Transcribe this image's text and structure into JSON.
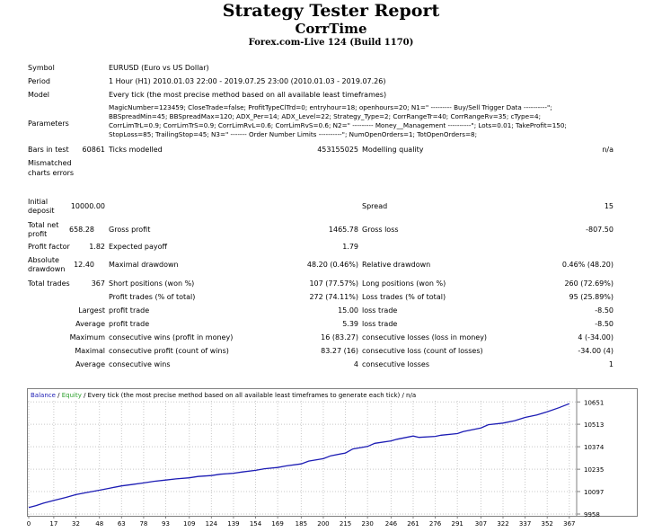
{
  "header": {
    "title": "Strategy Tester Report",
    "ea_name": "CorrTime",
    "server_build": "Forex.com-Live 124 (Build 1170)"
  },
  "settings": {
    "symbol_label": "Symbol",
    "symbol_value": "EURUSD (Euro vs US Dollar)",
    "period_label": "Period",
    "period_value": "1 Hour (H1) 2010.01.03 22:00 - 2019.07.25 23:00 (2010.01.03 - 2019.07.26)",
    "model_label": "Model",
    "model_value": "Every tick (the most precise method based on all available least timeframes)",
    "parameters_label": "Parameters",
    "parameters_lines": [
      "MagicNumber=123459; CloseTrade=false; ProfitTypeClTrd=0; entryhour=18; openhours=20; N1=\" --------- Buy/Sell Trigger Data ----------\";",
      "BBSpreadMin=45; BBSpreadMax=120; ADX_Per=14; ADX_Level=22; Strategy_Type=2; CorrRangeTr=40; CorrRangeRv=35; cType=4;",
      "CorrLimTrL=0.9; CorrLimTrS=0.9; CorrLimRvL=0.6; CorrLimRvS=0.6; N2=\" --------- Money__Management ----------\"; Lots=0.01; TakeProfit=150;",
      "StopLoss=85; TrailingStop=45; N3=\" ------- Order Number Limits ----------\"; NumOpenOrders=1; TotOpenOrders=8;"
    ]
  },
  "results": {
    "bars_in_test_label": "Bars in test",
    "bars_in_test": "60861",
    "ticks_modelled_label": "Ticks modelled",
    "ticks_modelled": "453155025",
    "modelling_quality_label": "Modelling quality",
    "modelling_quality": "n/a",
    "mismatched_label": "Mismatched charts errors",
    "initial_deposit_label": "Initial deposit",
    "initial_deposit": "10000.00",
    "spread_label": "Spread",
    "spread": "15",
    "total_net_profit_label": "Total net profit",
    "total_net_profit": "658.28",
    "gross_profit_label": "Gross profit",
    "gross_profit": "1465.78",
    "gross_loss_label": "Gross loss",
    "gross_loss": "-807.50",
    "profit_factor_label": "Profit factor",
    "profit_factor": "1.82",
    "expected_payoff_label": "Expected payoff",
    "expected_payoff": "1.79",
    "absolute_drawdown_label": "Absolute drawdown",
    "absolute_drawdown": "12.40",
    "maximal_drawdown_label": "Maximal drawdown",
    "maximal_drawdown": "48.20 (0.46%)",
    "relative_drawdown_label": "Relative drawdown",
    "relative_drawdown": "0.46% (48.20)",
    "total_trades_label": "Total trades",
    "total_trades": "367",
    "short_positions_label": "Short positions (won %)",
    "short_positions": "107 (77.57%)",
    "long_positions_label": "Long positions (won %)",
    "long_positions": "260 (72.69%)",
    "profit_trades_label": "Profit trades (% of total)",
    "profit_trades": "272 (74.11%)",
    "loss_trades_label": "Loss trades (% of total)",
    "loss_trades": "95 (25.89%)",
    "largest_label": "Largest",
    "largest_profit_trade_label": "profit trade",
    "largest_profit_trade": "15.00",
    "largest_loss_trade_label": "loss trade",
    "largest_loss_trade": "-8.50",
    "average_label": "Average",
    "average_profit_trade_label": "profit trade",
    "average_profit_trade": "5.39",
    "average_loss_trade_label": "loss trade",
    "average_loss_trade": "-8.50",
    "maximum_label": "Maximum",
    "max_consec_wins_label": "consecutive wins (profit in money)",
    "max_consec_wins": "16 (83.27)",
    "max_consec_losses_label": "consecutive losses (loss in money)",
    "max_consec_losses": "4 (-34.00)",
    "maximal_label": "Maximal",
    "maximal_consec_profit_label": "consecutive profit (count of wins)",
    "maximal_consec_profit": "83.27 (16)",
    "maximal_consec_loss_label": "consecutive loss (count of losses)",
    "maximal_consec_loss": "-34.00 (4)",
    "average2_label": "Average",
    "avg_consec_wins_label": "consecutive wins",
    "avg_consec_wins": "4",
    "avg_consec_losses_label": "consecutive losses",
    "avg_consec_losses": "1"
  },
  "chart_data": {
    "type": "line",
    "legend_balance": "Balance",
    "legend_sep1": " / ",
    "legend_equity": "Equity",
    "legend_rest": " / Every tick (the most precise method based on all available least timeframes to generate each tick) / n/a",
    "colors": {
      "balance": "#1c1cb4",
      "equity": "#2ca02c",
      "grid": "#c8c8c8"
    },
    "x_ticks": [
      "0",
      "17",
      "32",
      "48",
      "63",
      "78",
      "93",
      "109",
      "124",
      "139",
      "154",
      "169",
      "185",
      "200",
      "215",
      "230",
      "246",
      "261",
      "276",
      "291",
      "307",
      "322",
      "337",
      "352",
      "367"
    ],
    "y_ticks": [
      "10651",
      "10513",
      "10374",
      "10235",
      "10097",
      "9958"
    ],
    "ylim": [
      9958,
      10658
    ],
    "xlim": [
      0,
      372
    ],
    "series": [
      {
        "values_x": [
          0,
          5,
          10,
          17,
          25,
          32,
          40,
          48,
          55,
          63,
          70,
          78,
          85,
          93,
          100,
          109,
          115,
          124,
          130,
          139,
          145,
          154,
          160,
          169,
          175,
          185,
          190,
          200,
          205,
          215,
          220,
          230,
          235,
          246,
          250,
          261,
          265,
          276,
          280,
          291,
          295,
          307,
          312,
          322,
          330,
          337,
          345,
          352,
          360,
          367
        ],
        "values_y": [
          9998,
          10010,
          10025,
          10042,
          10060,
          10078,
          10092,
          10105,
          10118,
          10132,
          10140,
          10150,
          10160,
          10168,
          10175,
          10182,
          10190,
          10196,
          10204,
          10210,
          10218,
          10228,
          10238,
          10246,
          10256,
          10268,
          10285,
          10300,
          10318,
          10335,
          10360,
          10376,
          10395,
          10410,
          10420,
          10440,
          10432,
          10438,
          10445,
          10455,
          10468,
          10490,
          10510,
          10520,
          10535,
          10555,
          10570,
          10590,
          10615,
          10640
        ]
      }
    ]
  }
}
